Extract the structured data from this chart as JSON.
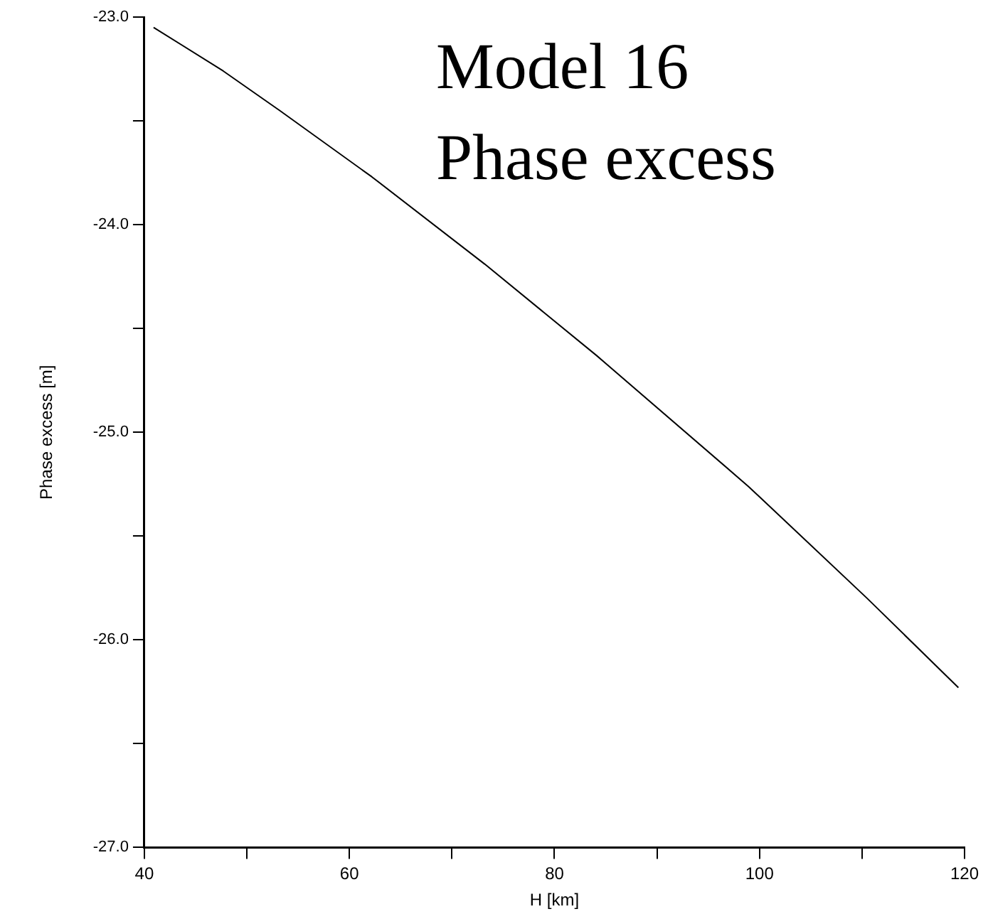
{
  "chart_data": {
    "type": "line",
    "title": "Model 16\nPhase excess",
    "xlabel": "H [km]",
    "ylabel": "Phase excess [m]",
    "x": [
      40.9,
      47.7,
      53.2,
      62.2,
      73.2,
      84.1,
      98.9,
      100.2,
      110.5,
      119.4
    ],
    "series": [
      {
        "color": "#000000",
        "values": [
          -23.05,
          -23.26,
          -23.45,
          -23.77,
          -24.19,
          -24.63,
          -25.26,
          -25.32,
          -25.8,
          -26.23
        ]
      }
    ],
    "xlim": [
      40,
      120
    ],
    "xticks": [
      40,
      {
        "value": 50,
        "label": null
      },
      60,
      {
        "value": 70,
        "label": null
      },
      80,
      {
        "value": 90,
        "label": null
      },
      100,
      {
        "value": 110,
        "label": null
      },
      120
    ],
    "ylim": [
      -27,
      -23
    ],
    "yticks": [
      {
        "value": -27,
        "label": "-27.0"
      },
      {
        "value": -26.5,
        "label": null
      },
      {
        "value": -26,
        "label": "-26.0"
      },
      {
        "value": -25.5,
        "label": null
      },
      {
        "value": -25,
        "label": "-25.0"
      },
      {
        "value": -24.5,
        "label": null
      },
      {
        "value": -24,
        "label": "-24.0"
      },
      {
        "value": -23.5,
        "label": null
      },
      {
        "value": -23,
        "label": "-23.0"
      }
    ],
    "grid": false,
    "legend": false,
    "marker": "none",
    "line_style": "solid"
  }
}
